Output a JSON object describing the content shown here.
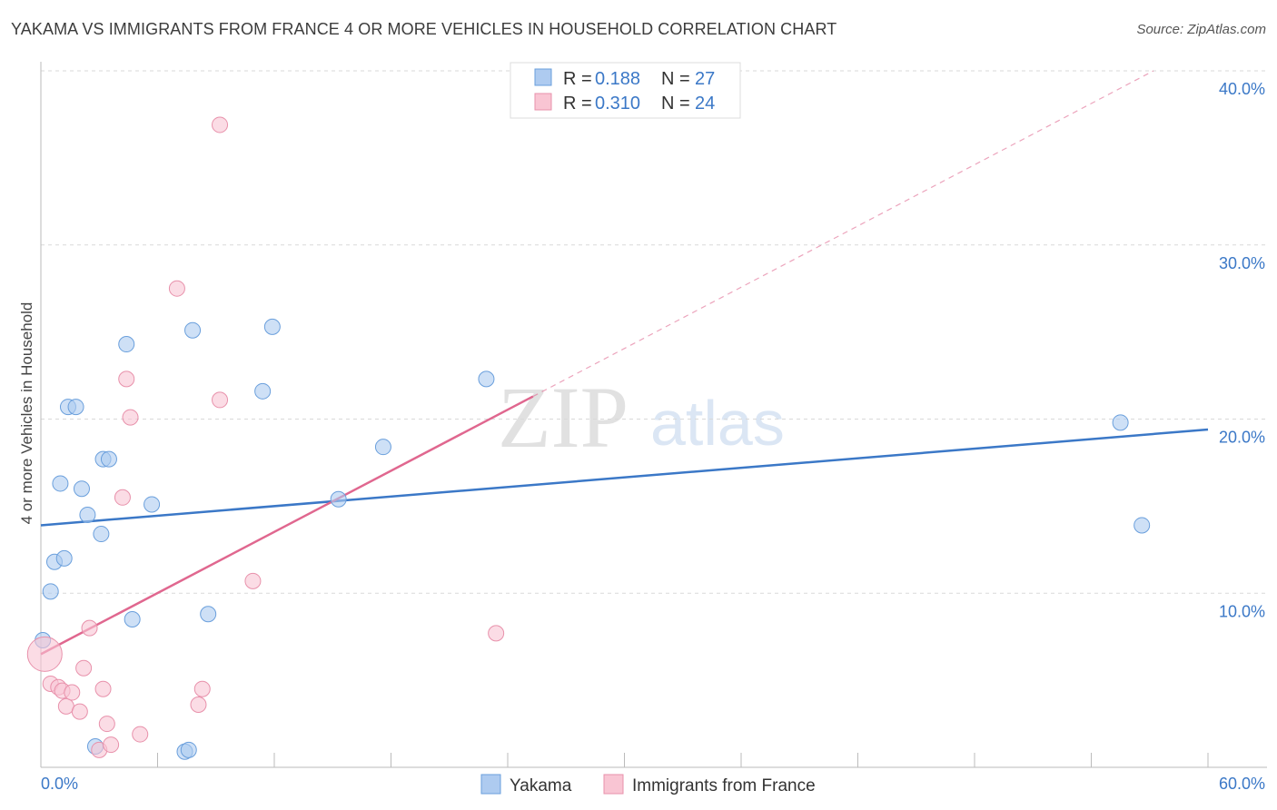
{
  "title": "YAKAMA VS IMMIGRANTS FROM FRANCE 4 OR MORE VEHICLES IN HOUSEHOLD CORRELATION CHART",
  "source": "Source: ZipAtlas.com",
  "watermark": {
    "zip": "ZIP",
    "atlas": "atlas"
  },
  "legend": {
    "r_label": "R =",
    "n_label": "N =",
    "rows": [
      {
        "r": "0.188",
        "n": "27",
        "color": "#aecbf0",
        "border": "#6a9fdc"
      },
      {
        "r": "0.310",
        "n": "24",
        "color": "#f9c5d3",
        "border": "#e891ab"
      }
    ]
  },
  "bottom_legend": [
    "Yakama",
    "Immigrants from France"
  ],
  "chart_data": {
    "type": "scatter",
    "title": "YAKAMA VS IMMIGRANTS FROM FRANCE 4 OR MORE VEHICLES IN HOUSEHOLD CORRELATION CHART",
    "xlabel": "",
    "ylabel": "4 or more Vehicles in Household",
    "xlim": [
      0,
      60
    ],
    "ylim": [
      0,
      40
    ],
    "x_tick_labels": [
      "0.0%",
      "60.0%"
    ],
    "y_ticks": [
      10,
      20,
      30,
      40
    ],
    "y_tick_labels": [
      "10.0%",
      "20.0%",
      "30.0%",
      "40.0%"
    ],
    "grid": true,
    "colors": {
      "yakama": "#3b78c7",
      "france": "#e0678f",
      "yakama_fill": "#aecbf0",
      "france_fill": "#f9c5d3"
    },
    "series": [
      {
        "name": "Yakama",
        "points": [
          [
            0.1,
            7.3
          ],
          [
            0.5,
            10.1
          ],
          [
            0.7,
            11.8
          ],
          [
            1.0,
            16.3
          ],
          [
            1.2,
            12.0
          ],
          [
            1.4,
            20.7
          ],
          [
            1.8,
            20.7
          ],
          [
            2.1,
            16.0
          ],
          [
            2.4,
            14.5
          ],
          [
            3.1,
            13.4
          ],
          [
            3.2,
            17.7
          ],
          [
            3.5,
            17.7
          ],
          [
            4.4,
            24.3
          ],
          [
            4.7,
            8.5
          ],
          [
            5.7,
            15.1
          ],
          [
            7.8,
            25.1
          ],
          [
            8.6,
            8.8
          ],
          [
            11.4,
            21.6
          ],
          [
            11.9,
            25.3
          ],
          [
            15.3,
            15.4
          ],
          [
            17.6,
            18.4
          ],
          [
            22.9,
            22.3
          ],
          [
            55.5,
            19.8
          ],
          [
            56.6,
            13.9
          ],
          [
            2.8,
            1.2
          ],
          [
            7.4,
            0.9
          ],
          [
            7.6,
            1.0
          ]
        ],
        "trend": {
          "x": [
            0,
            60
          ],
          "y": [
            13.9,
            19.4
          ],
          "style": "solid"
        }
      },
      {
        "name": "Immigrants from France",
        "points": [
          [
            0.2,
            6.5
          ],
          [
            0.5,
            4.8
          ],
          [
            0.9,
            4.6
          ],
          [
            1.1,
            4.4
          ],
          [
            1.3,
            3.5
          ],
          [
            1.6,
            4.3
          ],
          [
            2.0,
            3.2
          ],
          [
            2.2,
            5.7
          ],
          [
            2.5,
            8.0
          ],
          [
            3.0,
            1.0
          ],
          [
            3.2,
            4.5
          ],
          [
            3.4,
            2.5
          ],
          [
            3.6,
            1.3
          ],
          [
            4.4,
            22.3
          ],
          [
            4.6,
            20.1
          ],
          [
            4.2,
            15.5
          ],
          [
            5.1,
            1.9
          ],
          [
            7.0,
            27.5
          ],
          [
            8.1,
            3.6
          ],
          [
            8.3,
            4.5
          ],
          [
            9.2,
            36.9
          ],
          [
            9.2,
            21.1
          ],
          [
            10.9,
            10.7
          ],
          [
            23.4,
            7.7
          ]
        ],
        "trend": {
          "x": [
            0,
            25.3
          ],
          "y": [
            6.5,
            21.3
          ],
          "style": "solid",
          "dashed_extension": {
            "x": [
              25.3,
              57.2
            ],
            "y": [
              21.3,
              40.0
            ]
          }
        }
      }
    ]
  }
}
